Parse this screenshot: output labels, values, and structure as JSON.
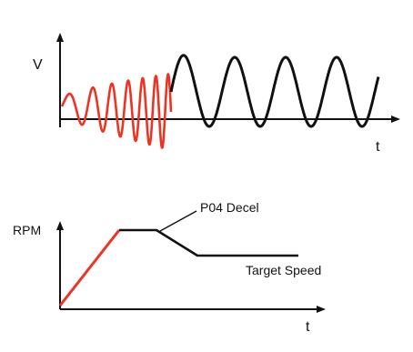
{
  "top_plot": {
    "y_label": "V",
    "x_label": "t",
    "colors": {
      "accelerating": "#ee3322",
      "steady": "#111111",
      "axis": "#111111"
    }
  },
  "bottom_plot": {
    "y_label": "RPM",
    "x_label": "t",
    "annotation_decel": "P04 Decel",
    "annotation_target": "Target Speed",
    "colors": {
      "accel_ramp": "#ee3322",
      "profile": "#111111",
      "axis": "#111111"
    }
  }
}
